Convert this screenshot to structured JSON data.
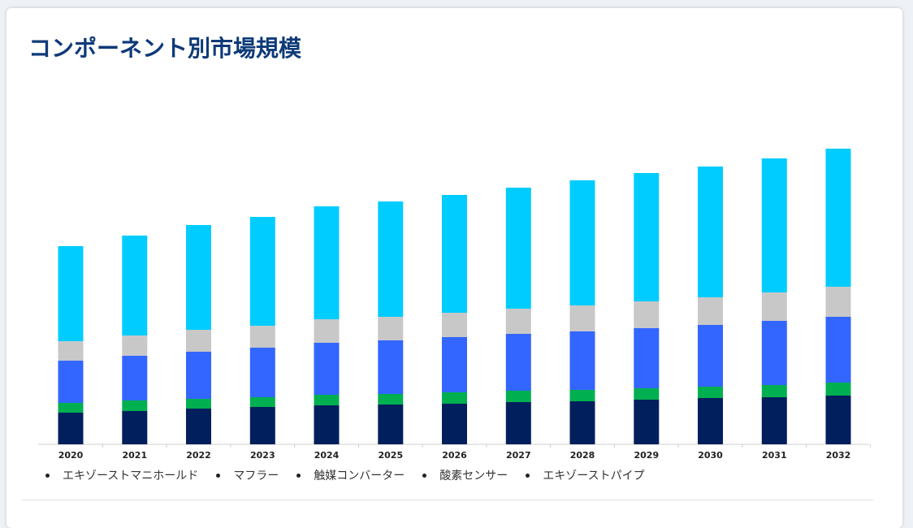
{
  "page": {
    "title": "コンポーネント別市場規模"
  },
  "chart_data": {
    "type": "bar",
    "stacked": true,
    "categories": [
      "2020",
      "2021",
      "2022",
      "2023",
      "2024",
      "2025",
      "2026",
      "2027",
      "2028",
      "2029",
      "2030",
      "2031",
      "2032"
    ],
    "series": [
      {
        "name": "エキゾーストマニホールド",
        "color": "#001f5c",
        "values": [
          39,
          41,
          44,
          46,
          48,
          49,
          50,
          52,
          53,
          55,
          57,
          58,
          60
        ]
      },
      {
        "name": "マフラー",
        "color": "#00b050",
        "values": [
          12,
          13,
          12,
          12,
          13,
          13,
          14,
          14,
          14,
          14,
          14,
          15,
          16
        ]
      },
      {
        "name": "触媒コンバーター",
        "color": "#3366ff",
        "values": [
          52,
          55,
          58,
          61,
          64,
          66,
          68,
          70,
          72,
          74,
          76,
          79,
          81
        ]
      },
      {
        "name": "酸素センサー",
        "color": "#c8c8c8",
        "values": [
          24,
          25,
          27,
          27,
          29,
          29,
          30,
          31,
          32,
          33,
          34,
          35,
          37
        ]
      },
      {
        "name": "エキゾーストパイプ",
        "color": "#00ccff",
        "values": [
          117,
          123,
          129,
          134,
          139,
          142,
          145,
          149,
          154,
          158,
          161,
          165,
          170
        ]
      }
    ],
    "ylim": [
      0,
      370
    ],
    "legend_position": "bottom-left",
    "grid": false
  }
}
